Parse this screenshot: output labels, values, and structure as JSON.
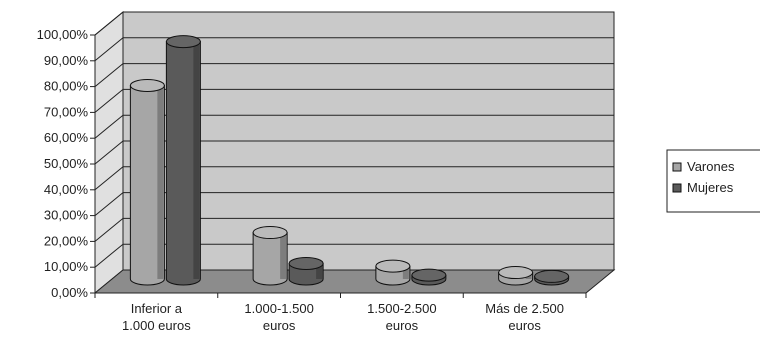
{
  "chart_data": {
    "type": "bar",
    "categories": [
      [
        "Inferior a",
        "1.000 euros"
      ],
      [
        "1.000-1.500",
        "euros"
      ],
      [
        "1.500-2.500",
        "euros"
      ],
      [
        "Más de 2.500",
        "euros"
      ]
    ],
    "series": [
      {
        "name": "Varones",
        "color": "#a6a6a6",
        "values": [
          75,
          18,
          5,
          2.5
        ]
      },
      {
        "name": "Mujeres",
        "color": "#5a5a5a",
        "values": [
          92,
          6,
          1.5,
          1
        ]
      }
    ],
    "yticks": [
      "0,00%",
      "10,00%",
      "20,00%",
      "30,00%",
      "40,00%",
      "50,00%",
      "60,00%",
      "70,00%",
      "80,00%",
      "90,00%",
      "100,00%"
    ],
    "ylim": [
      0,
      100
    ],
    "grid": true,
    "legend": "right",
    "style": "3d-cylinder"
  }
}
